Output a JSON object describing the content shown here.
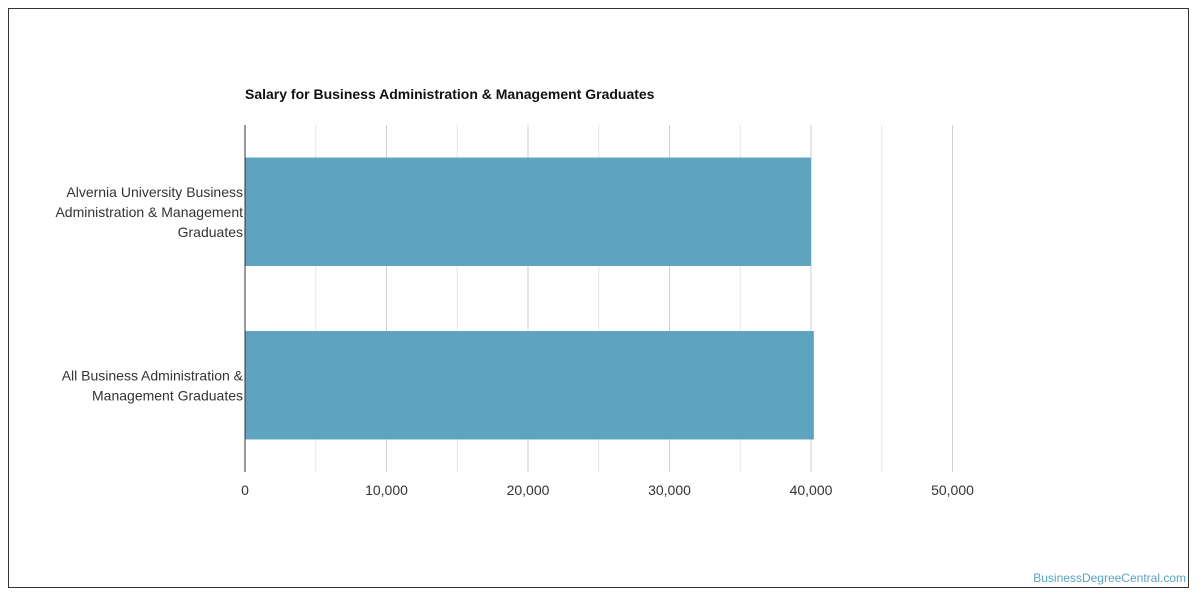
{
  "chart_data": {
    "type": "bar",
    "orientation": "horizontal",
    "title": "Salary for Business Administration & Management Graduates",
    "categories": [
      [
        "Alvernia University Business",
        "Administration & Management",
        "Graduates"
      ],
      [
        "All Business Administration &",
        "Management Graduates"
      ]
    ],
    "values": [
      40000,
      40200
    ],
    "xlim": [
      0,
      50000
    ],
    "x_ticks": [
      0,
      10000,
      20000,
      30000,
      40000,
      50000
    ],
    "x_tick_labels": [
      "0",
      "10,000",
      "20,000",
      "30,000",
      "40,000",
      "50,000"
    ],
    "grid": true,
    "bar_color": "#5ea3c0"
  },
  "footer": {
    "source": "BusinessDegreeCentral.com"
  }
}
